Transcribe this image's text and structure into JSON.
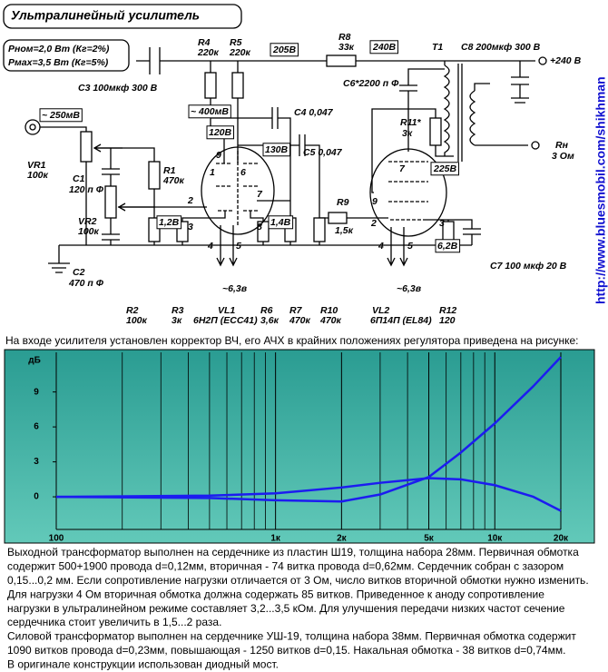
{
  "schematic": {
    "title": "Ультралинейный усилитель",
    "specs": [
      "Рном=2,0 Вт  (Кг=2%)",
      "Рмах=3,5 Вт  (Кг=5%)"
    ],
    "labels": [
      "С3   100мкф 300 В",
      "R4",
      "220к",
      "R5",
      "220к",
      "205В",
      "R8",
      "33к",
      "240В",
      "Т1",
      "С8 200мкф 300 В",
      "+240 В",
      "С6*2200 п Ф",
      "~ 250мВ",
      "~ 400мВ",
      "С4 0,047",
      "R11*",
      "3к",
      "120В",
      "Rн",
      "3 Ом",
      "130В",
      "С5 0,047",
      "VR1",
      "100к",
      "С1",
      "120 п Ф",
      "R1",
      "470к",
      "225В",
      "9",
      "6",
      "1",
      "7",
      "VR2",
      "100к",
      "R9",
      "1,5к",
      "2",
      "7",
      "9",
      "1,2В",
      "3",
      "8",
      "1,4В",
      "2",
      "3",
      "6,2В",
      "4",
      "5",
      "4",
      "5",
      "С2",
      "470 п Ф",
      "~6,3в",
      "~6,3в",
      "С7 100 мкф 20 В",
      "R2",
      "100к",
      "R3",
      "3к",
      "VL1",
      "6Н2П (ECC41)",
      "R6",
      "3,6к",
      "R7",
      "470к",
      "R10",
      "470к",
      "VL2",
      "6П14П (EL84)",
      "R12",
      "120"
    ],
    "url": "http://www.bluesmobil.com/shikhman"
  },
  "caption": "На входе усилителя установлен корректор ВЧ, его АЧХ в крайних положениях регулятора  приведена на рисунке:",
  "chart_data": {
    "type": "line",
    "y_label": "дБ",
    "log_x": true,
    "x": [
      100,
      500,
      1000,
      2000,
      3000,
      5000,
      7000,
      10000,
      15000,
      20000
    ],
    "series": [
      {
        "color": "#1c1cf0",
        "values": [
          0,
          -0.1,
          -0.3,
          -0.4,
          0.2,
          1.7,
          3.8,
          6.3,
          9.5,
          12.0
        ]
      },
      {
        "color": "#1c1cf0",
        "values": [
          0,
          0.1,
          0.3,
          0.8,
          1.2,
          1.6,
          1.5,
          1.0,
          0,
          -1.2
        ]
      }
    ],
    "xlim": [
      100,
      20000
    ],
    "xticks": [
      100,
      {
        "value": 1000,
        "label": "1к"
      },
      {
        "value": 2000,
        "label": "2к"
      },
      {
        "value": 5000,
        "label": "5к"
      },
      {
        "value": 10000,
        "label": "10к"
      },
      {
        "value": 20000,
        "label": "20к"
      }
    ],
    "minor_xticks": [
      200,
      300,
      400,
      500,
      600,
      700,
      800,
      900,
      3000,
      4000,
      6000,
      7000,
      8000,
      9000
    ],
    "ylim": [
      -2.8,
      12.4
    ],
    "yticks": [
      0,
      3,
      6,
      9
    ],
    "grid": "x"
  },
  "body": [
    "Выходной трансформатор выполнен на сердечнике из пластин Ш19, толщина набора 28мм. Первичная обмотка",
    "содержит 500+1900 провода  d=0,12мм,  вторичная - 74 витка провода d=0,62мм.  Сердечник собран с зазором",
    "0,15...0,2 мм. Если сопротивление нагрузки отличается от 3 Ом, число витков вторичной обмотки нужно изменить.",
    "Для нагрузки 4 Ом вторичная обмотка должна содержать 85 витков. Приведенное к аноду сопротивление",
    "нагрузки в ультралинейном режиме составляет 3,2...3,5 кОм.  Для  улучшения  передачи низких частот  сечение",
    "сердечника стоит  увеличить в 1,5...2 раза.",
    "Силовой трансформатор выполнен на сердечнике УШ-19, толщина набора 38мм.  Первичная обмотка содержит",
    "1090 витков провода  d=0,23мм,  повышающая - 1250 витков  d=0,15.  Накальная обмотка - 38 витков  d=0,74мм.",
    "В оригинале конструкции использован диодный мост."
  ]
}
